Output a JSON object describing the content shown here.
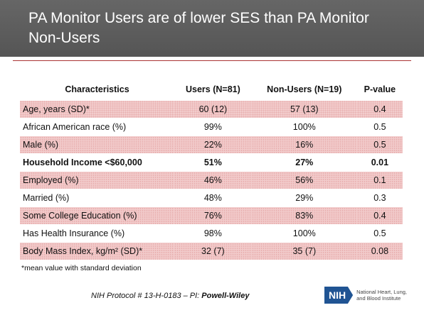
{
  "header": {
    "title": "PA Monitor Users are of lower SES than PA Monitor Non-Users"
  },
  "table": {
    "header": [
      "Characteristics",
      "Users (N=81)",
      "Non-Users (N=19)",
      "P-value"
    ],
    "rows": [
      [
        "Age, years (SD)*",
        "60 (12)",
        "57 (13)",
        "0.4"
      ],
      [
        "African American race (%)",
        "99%",
        "100%",
        "0.5"
      ],
      [
        "Male  (%)",
        "22%",
        "16%",
        "0.5"
      ],
      [
        "Household Income <$60,000",
        "51%",
        "27%",
        "0.01"
      ],
      [
        "Employed (%)",
        "46%",
        "56%",
        "0.1"
      ],
      [
        "Married (%)",
        "48%",
        "29%",
        "0.3"
      ],
      [
        "Some College Education (%)",
        "76%",
        "83%",
        "0.4"
      ],
      [
        "Has Health Insurance (%)",
        "98%",
        "100%",
        "0.5"
      ],
      [
        "Body Mass Index, kg/m² (SD)*",
        "32 (7)",
        "35 (7)",
        "0.08"
      ]
    ]
  },
  "footnote": "*mean value with standard deviation",
  "footer": {
    "protocol": "NIH Protocol # 13-H-0183 – PI: ",
    "pi": "Powell-Wiley"
  },
  "logo": {
    "mark": "NIH",
    "institute": "National Heart, Lung, and Blood Institute"
  }
}
